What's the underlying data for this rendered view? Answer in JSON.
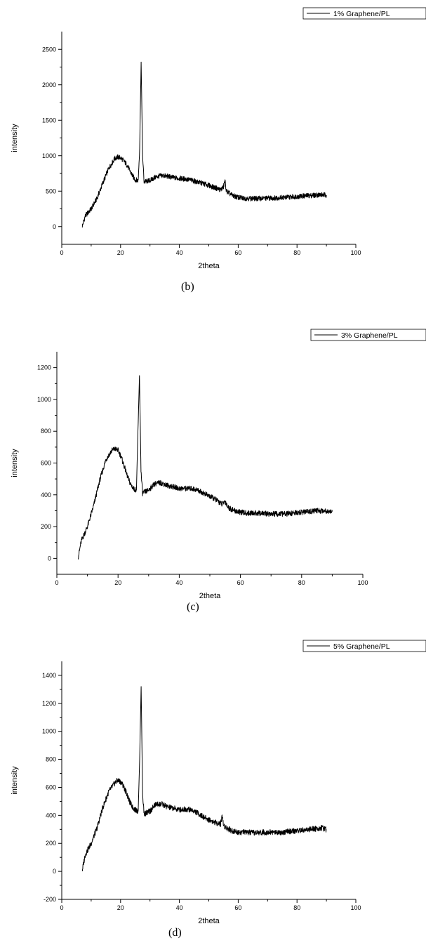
{
  "chart_data": [
    {
      "type": "line",
      "panel": "(b)",
      "xlabel": "2theta",
      "ylabel": "intensity",
      "xlim": [
        0,
        100
      ],
      "ylim": [
        -250,
        2750
      ],
      "xticks": [
        0,
        20,
        40,
        60,
        80,
        100
      ],
      "yticks": [
        0,
        500,
        1000,
        1500,
        2000,
        2500
      ],
      "legend": "top-right",
      "series": [
        {
          "name": "1% Graphene/PL",
          "x": [
            7,
            8,
            10,
            12,
            14,
            16,
            18,
            19,
            20,
            21,
            22,
            23,
            24,
            25,
            26,
            26.5,
            27,
            27.5,
            28,
            30,
            32,
            34,
            36,
            38,
            40,
            42,
            44,
            46,
            48,
            50,
            52,
            54,
            55,
            55.5,
            56,
            58,
            60,
            62,
            65,
            70,
            75,
            80,
            85,
            88,
            90
          ],
          "y": [
            10,
            150,
            250,
            400,
            620,
            820,
            960,
            980,
            970,
            930,
            880,
            800,
            720,
            660,
            650,
            1100,
            2320,
            1000,
            630,
            650,
            700,
            720,
            710,
            690,
            680,
            670,
            655,
            630,
            610,
            580,
            550,
            520,
            560,
            650,
            500,
            440,
            410,
            400,
            395,
            400,
            410,
            425,
            440,
            450,
            445
          ]
        }
      ]
    },
    {
      "type": "line",
      "panel": "(c)",
      "xlabel": "2theta",
      "ylabel": "intensity",
      "xlim": [
        0,
        100
      ],
      "ylim": [
        -100,
        1300
      ],
      "xticks": [
        0,
        20,
        40,
        60,
        80,
        100
      ],
      "yticks": [
        0,
        200,
        400,
        600,
        800,
        1000,
        1200
      ],
      "legend": "top-right",
      "series": [
        {
          "name": "3% Graphene/PL",
          "x": [
            7,
            8,
            10,
            12,
            14,
            16,
            18,
            19,
            20,
            21,
            22,
            23,
            24,
            25,
            26,
            26.5,
            27,
            27.5,
            28,
            30,
            32,
            34,
            36,
            38,
            40,
            42,
            44,
            46,
            48,
            50,
            52,
            54,
            55,
            56,
            58,
            60,
            62,
            65,
            70,
            75,
            80,
            85,
            88,
            90
          ],
          "y": [
            10,
            110,
            200,
            330,
            490,
            620,
            680,
            690,
            680,
            640,
            580,
            520,
            470,
            440,
            430,
            800,
            1150,
            550,
            410,
            430,
            470,
            475,
            460,
            450,
            440,
            440,
            440,
            430,
            410,
            390,
            370,
            340,
            360,
            320,
            300,
            290,
            285,
            285,
            280,
            280,
            290,
            300,
            300,
            295
          ]
        }
      ]
    },
    {
      "type": "line",
      "panel": "(d)",
      "xlabel": "2theta",
      "ylabel": "intensity",
      "xlim": [
        0,
        100
      ],
      "ylim": [
        -200,
        1500
      ],
      "xticks": [
        0,
        20,
        40,
        60,
        80,
        100
      ],
      "yticks": [
        -200,
        0,
        200,
        400,
        600,
        800,
        1000,
        1200,
        1400
      ],
      "legend": "top-right",
      "series": [
        {
          "name": "5% Graphene/PL",
          "x": [
            7,
            8,
            10,
            12,
            14,
            16,
            18,
            19,
            20,
            21,
            22,
            23,
            24,
            25,
            26,
            26.5,
            27,
            27.5,
            28,
            30,
            32,
            34,
            36,
            38,
            40,
            42,
            44,
            46,
            48,
            50,
            52,
            54,
            54.5,
            55,
            56,
            58,
            60,
            62,
            65,
            70,
            75,
            80,
            85,
            88,
            90
          ],
          "y": [
            10,
            120,
            200,
            310,
            460,
            570,
            630,
            650,
            640,
            610,
            560,
            500,
            460,
            440,
            430,
            800,
            1320,
            550,
            410,
            430,
            480,
            480,
            460,
            450,
            440,
            445,
            440,
            420,
            390,
            370,
            350,
            340,
            400,
            330,
            310,
            290,
            280,
            280,
            275,
            280,
            280,
            290,
            300,
            310,
            300
          ]
        }
      ]
    }
  ],
  "captions": [
    "(b)",
    "(c)",
    "(d)"
  ]
}
